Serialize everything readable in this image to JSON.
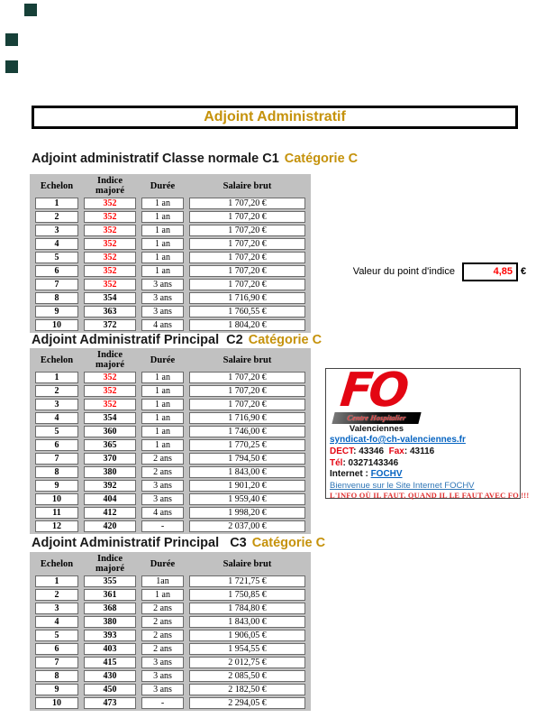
{
  "page_title": "Adjoint Administratif",
  "colors": {
    "accent_gold": "#C5920B",
    "indice_red": "#FF0000",
    "fo_red": "#E30613",
    "link_blue": "#0563C1",
    "welcome_blue": "#2E75B6",
    "table_backdrop_grey": "#C1C1C1",
    "echelon_green": "#E9F0DE"
  },
  "point_value": {
    "label": "Valeur du point d'indice",
    "value": "4,85",
    "currency": "€"
  },
  "tables": [
    {
      "heading_black": "Adjoint administratif Classe normale C1",
      "heading_gold": "Catégorie C",
      "columns": [
        "Echelon",
        "Indice majoré",
        "Durée",
        "Salaire brut"
      ],
      "rows": [
        {
          "echelon": "1",
          "indice": "352",
          "red": true,
          "duree": "1 an",
          "salaire": "1 707,20 €"
        },
        {
          "echelon": "2",
          "indice": "352",
          "red": true,
          "duree": "1 an",
          "salaire": "1 707,20 €"
        },
        {
          "echelon": "3",
          "indice": "352",
          "red": true,
          "duree": "1 an",
          "salaire": "1 707,20 €"
        },
        {
          "echelon": "4",
          "indice": "352",
          "red": true,
          "duree": "1 an",
          "salaire": "1 707,20 €"
        },
        {
          "echelon": "5",
          "indice": "352",
          "red": true,
          "duree": "1 an",
          "salaire": "1 707,20 €"
        },
        {
          "echelon": "6",
          "indice": "352",
          "red": true,
          "duree": "1 an",
          "salaire": "1 707,20 €"
        },
        {
          "echelon": "7",
          "indice": "352",
          "red": true,
          "duree": "3 ans",
          "salaire": "1 707,20 €"
        },
        {
          "echelon": "8",
          "indice": "354",
          "red": false,
          "duree": "3 ans",
          "salaire": "1 716,90 €"
        },
        {
          "echelon": "9",
          "indice": "363",
          "red": false,
          "duree": "3 ans",
          "salaire": "1 760,55 €"
        },
        {
          "echelon": "10",
          "indice": "372",
          "red": false,
          "duree": "4 ans",
          "salaire": "1 804,20 €"
        }
      ]
    },
    {
      "heading_black": "Adjoint Administratif Principal  C2",
      "heading_gold": "Catégorie C",
      "columns": [
        "Echelon",
        "Indice majoré",
        "Durée",
        "Salaire brut"
      ],
      "rows": [
        {
          "echelon": "1",
          "indice": "352",
          "red": true,
          "duree": "1 an",
          "salaire": "1 707,20 €"
        },
        {
          "echelon": "2",
          "indice": "352",
          "red": true,
          "duree": "1 an",
          "salaire": "1 707,20 €"
        },
        {
          "echelon": "3",
          "indice": "352",
          "red": true,
          "duree": "1 an",
          "salaire": "1 707,20 €"
        },
        {
          "echelon": "4",
          "indice": "354",
          "red": false,
          "duree": "1 an",
          "salaire": "1 716,90 €"
        },
        {
          "echelon": "5",
          "indice": "360",
          "red": false,
          "duree": "1 an",
          "salaire": "1 746,00 €"
        },
        {
          "echelon": "6",
          "indice": "365",
          "red": false,
          "duree": "1 an",
          "salaire": "1 770,25 €"
        },
        {
          "echelon": "7",
          "indice": "370",
          "red": false,
          "duree": "2 ans",
          "salaire": "1 794,50 €"
        },
        {
          "echelon": "8",
          "indice": "380",
          "red": false,
          "duree": "2 ans",
          "salaire": "1 843,00 €"
        },
        {
          "echelon": "9",
          "indice": "392",
          "red": false,
          "duree": "3 ans",
          "salaire": "1 901,20 €"
        },
        {
          "echelon": "10",
          "indice": "404",
          "red": false,
          "duree": "3 ans",
          "salaire": "1 959,40 €"
        },
        {
          "echelon": "11",
          "indice": "412",
          "red": false,
          "duree": "4 ans",
          "salaire": "1 998,20 €"
        },
        {
          "echelon": "12",
          "indice": "420",
          "red": false,
          "duree": "-",
          "salaire": "2 037,00 €"
        }
      ]
    },
    {
      "heading_black": "Adjoint Administratif Principal   C3",
      "heading_gold": "Catégorie C",
      "columns": [
        "Echelon",
        "Indice majoré",
        "Durée",
        "Salaire brut"
      ],
      "rows": [
        {
          "echelon": "1",
          "indice": "355",
          "red": false,
          "duree": "1an",
          "salaire": "1 721,75 €"
        },
        {
          "echelon": "2",
          "indice": "361",
          "red": false,
          "duree": "1 an",
          "salaire": "1 750,85 €"
        },
        {
          "echelon": "3",
          "indice": "368",
          "red": false,
          "duree": "2 ans",
          "salaire": "1 784,80 €"
        },
        {
          "echelon": "4",
          "indice": "380",
          "red": false,
          "duree": "2 ans",
          "salaire": "1 843,00 €"
        },
        {
          "echelon": "5",
          "indice": "393",
          "red": false,
          "duree": "2 ans",
          "salaire": "1 906,05 €"
        },
        {
          "echelon": "6",
          "indice": "403",
          "red": false,
          "duree": "2 ans",
          "salaire": "1 954,55 €"
        },
        {
          "echelon": "7",
          "indice": "415",
          "red": false,
          "duree": "3 ans",
          "salaire": "2 012,75 €"
        },
        {
          "echelon": "8",
          "indice": "430",
          "red": false,
          "duree": "3 ans",
          "salaire": "2 085,50 €"
        },
        {
          "echelon": "9",
          "indice": "450",
          "red": false,
          "duree": "3 ans",
          "salaire": "2 182,50 €"
        },
        {
          "echelon": "10",
          "indice": "473",
          "red": false,
          "duree": "-",
          "salaire": "2 294,05 €"
        }
      ]
    }
  ],
  "fo_card": {
    "logo": "FO",
    "banner": "Centre Hospitalier",
    "city": "Valenciennes",
    "email": "syndicat-fo@ch-valenciennes.fr",
    "dect_label": "DECT",
    "dect_value": ": 43346",
    "fax_label": "Fax",
    "fax_value": ": 43116",
    "tel_label": "Tél",
    "tel_value": ": 0327143346",
    "internet_label": "Internet :",
    "internet_link": "FOCHV",
    "welcome": "Bienvenue sur le Site Internet FOCHV",
    "slogan": "L'INFO OÙ IL FAUT, QUAND IL LE FAUT AVEC FO !!!"
  }
}
